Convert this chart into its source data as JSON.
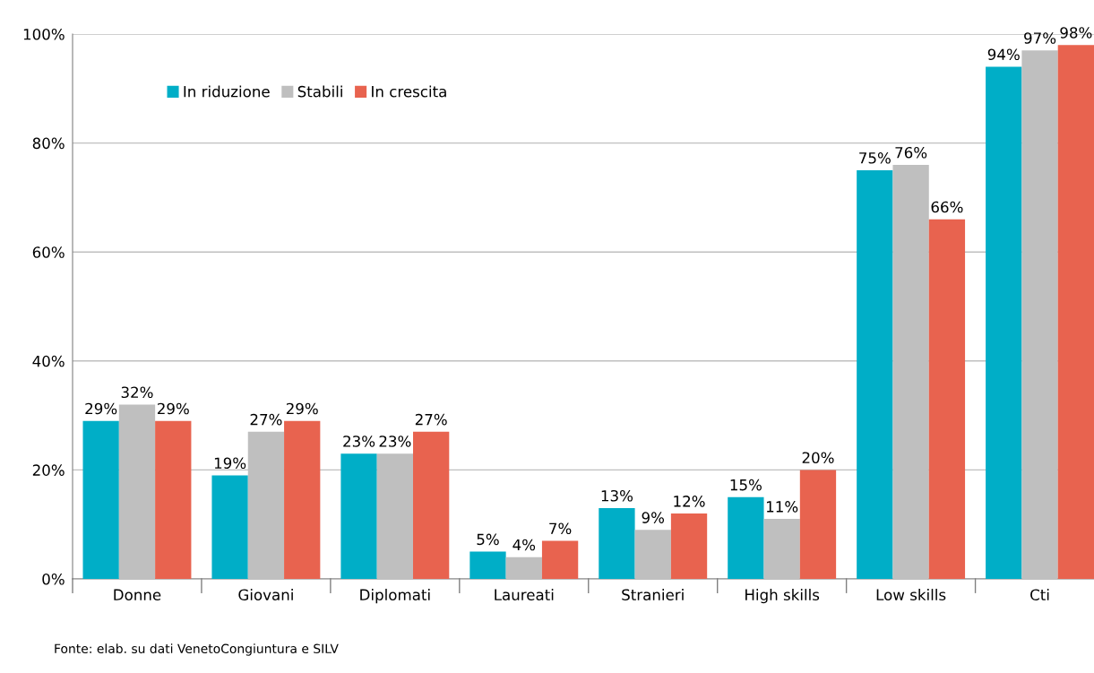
{
  "chart_data": {
    "type": "bar",
    "categories": [
      "Donne",
      "Giovani",
      "Diplomati",
      "Laureati",
      "Stranieri",
      "High skills",
      "Low skills",
      "Cti"
    ],
    "series": [
      {
        "name": "In riduzione",
        "color": "#00aec7",
        "values": [
          29,
          19,
          23,
          5,
          13,
          15,
          75,
          94
        ],
        "value_labels": [
          "29%",
          "19%",
          "23%",
          "5%",
          "13%",
          "15%",
          "75%",
          "94%"
        ]
      },
      {
        "name": "Stabili",
        "color": "#bfbfbf",
        "values": [
          32,
          27,
          23,
          4,
          9,
          11,
          76,
          97
        ],
        "value_labels": [
          "32%",
          "27%",
          "23%",
          "4%",
          "9%",
          "11%",
          "76%",
          "97%"
        ]
      },
      {
        "name": "In crescita",
        "color": "#e8634f",
        "values": [
          29,
          29,
          27,
          7,
          12,
          20,
          66,
          98
        ],
        "value_labels": [
          "29%",
          "29%",
          "27%",
          "7%",
          "12%",
          "20%",
          "66%",
          "98%"
        ]
      }
    ],
    "ylim": [
      0,
      100
    ],
    "yticks": [
      {
        "value": 0,
        "label": "0%"
      },
      {
        "value": 20,
        "label": "20%"
      },
      {
        "value": 40,
        "label": "40%"
      },
      {
        "value": 60,
        "label": "60%"
      },
      {
        "value": 80,
        "label": "80%"
      },
      {
        "value": 100,
        "label": "100%"
      }
    ],
    "grid": "y",
    "legend": "top left",
    "annotations": [
      "Fonte: elab. su dati VenetoCongiuntura e SILV"
    ]
  }
}
